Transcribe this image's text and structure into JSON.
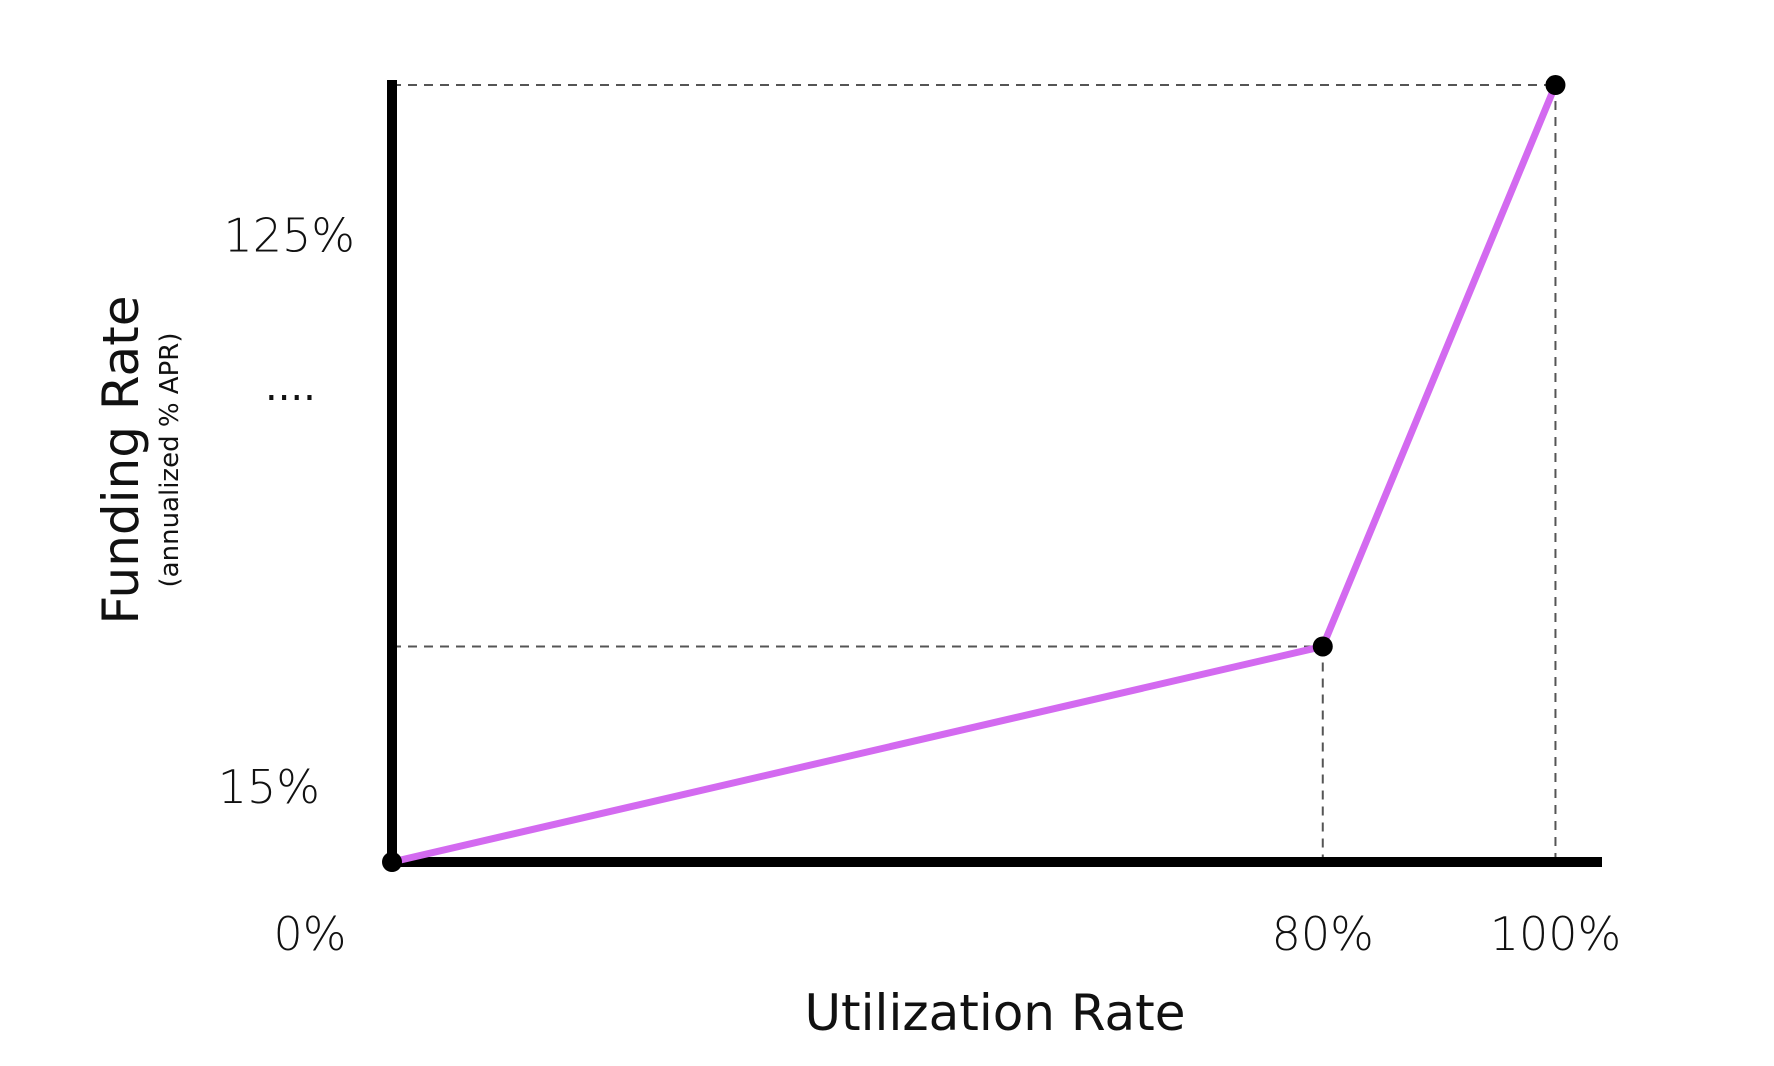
{
  "chart_data": {
    "type": "line",
    "xlabel": "Utilization Rate",
    "ylabel": "Funding Rate",
    "ylabel_sub": "(annualized % APR)",
    "x_ticks": [
      {
        "value": 0,
        "label": "0%"
      },
      {
        "value": 80,
        "label": "80%"
      },
      {
        "value": 100,
        "label": "100%"
      }
    ],
    "y_ticks": [
      {
        "value": 15,
        "label": "15%"
      },
      {
        "value": 125,
        "label": "125%"
      }
    ],
    "y_ellipsis": "....",
    "xlim": [
      0,
      104
    ],
    "ylim": [
      0,
      156
    ],
    "grid": false,
    "series": [
      {
        "color": "#d36af0",
        "points": [
          {
            "x": 0,
            "y": 0
          },
          {
            "x": 80,
            "y": 43
          },
          {
            "x": 100,
            "y": 155
          }
        ]
      }
    ],
    "reference_lines": [
      {
        "x": 80,
        "y": 43
      },
      {
        "x": 100,
        "y": 155
      }
    ],
    "colors": {
      "line": "#d36af0",
      "axis": "#000000",
      "marker": "#000000",
      "dash": "#555555"
    }
  }
}
